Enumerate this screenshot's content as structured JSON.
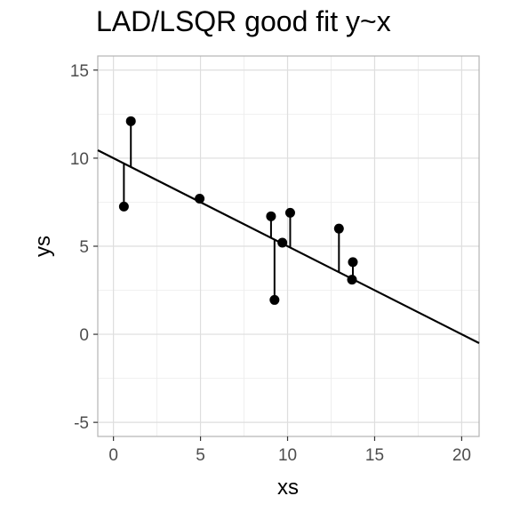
{
  "chart_data": {
    "type": "scatter",
    "title": "LAD/LSQR good fit y~x",
    "xlabel": "xs",
    "ylabel": "ys",
    "xlim": [
      -0.9,
      21.0
    ],
    "ylim": [
      -5.8,
      15.8
    ],
    "x_ticks": [
      0,
      5,
      10,
      15,
      20
    ],
    "y_ticks": [
      -5,
      0,
      5,
      10,
      15
    ],
    "x_tick_labels": [
      "0",
      "5",
      "10",
      "15",
      "20"
    ],
    "y_tick_labels": [
      "-5",
      "0",
      "5",
      "10",
      "15"
    ],
    "grid": true,
    "points": [
      {
        "x": 0.6,
        "y": 7.25
      },
      {
        "x": 1.0,
        "y": 12.1
      },
      {
        "x": 4.95,
        "y": 7.7
      },
      {
        "x": 9.05,
        "y": 6.7
      },
      {
        "x": 9.25,
        "y": 1.95
      },
      {
        "x": 9.7,
        "y": 5.2
      },
      {
        "x": 10.15,
        "y": 6.9
      },
      {
        "x": 12.95,
        "y": 6.0
      },
      {
        "x": 13.7,
        "y": 3.1
      },
      {
        "x": 13.75,
        "y": 4.1
      }
    ],
    "fit_line": {
      "intercept": 10.0,
      "slope": -0.5
    }
  }
}
